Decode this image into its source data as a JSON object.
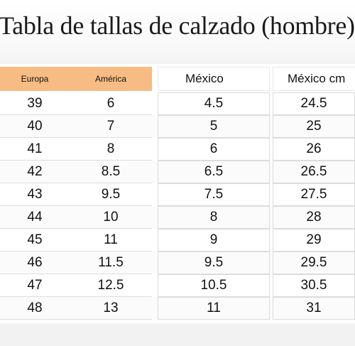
{
  "title": "Tabla de tallas de calzado (hombre)",
  "table": {
    "headers": [
      "Europa",
      "América",
      "México",
      "México cm"
    ],
    "rows": [
      [
        "39",
        "6",
        "4.5",
        "24.5"
      ],
      [
        "40",
        "7",
        "5",
        "25"
      ],
      [
        "41",
        "8",
        "6",
        "26"
      ],
      [
        "42",
        "8.5",
        "6.5",
        "26.5"
      ],
      [
        "43",
        "9.5",
        "7.5",
        "27.5"
      ],
      [
        "44",
        "10",
        "8",
        "28"
      ],
      [
        "45",
        "11",
        "9",
        "29"
      ],
      [
        "46",
        "11.5",
        "9.5",
        "29.5"
      ],
      [
        "47",
        "12.5",
        "10.5",
        "30.5"
      ],
      [
        "48",
        "13",
        "11",
        "31"
      ]
    ]
  },
  "colors": {
    "header_accent": "#f7bc83",
    "text": "#111111",
    "grid": "#dcdcdc"
  }
}
